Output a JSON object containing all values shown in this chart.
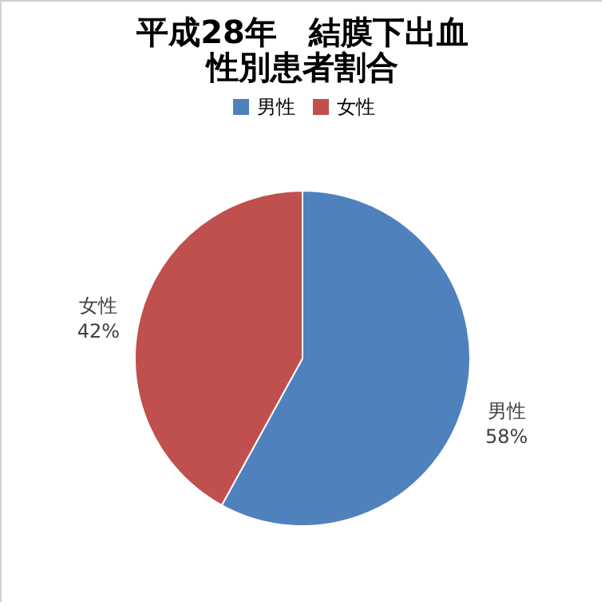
{
  "chart_data": {
    "type": "pie",
    "title": "平成28年　結膜下出血",
    "subtitle": "性別患者割合",
    "categories": [
      "男性",
      "女性"
    ],
    "values": [
      58,
      42
    ],
    "colors": [
      "#4f81bd",
      "#c0504d"
    ],
    "value_labels": [
      "58%",
      "42%"
    ],
    "legend": "top"
  }
}
